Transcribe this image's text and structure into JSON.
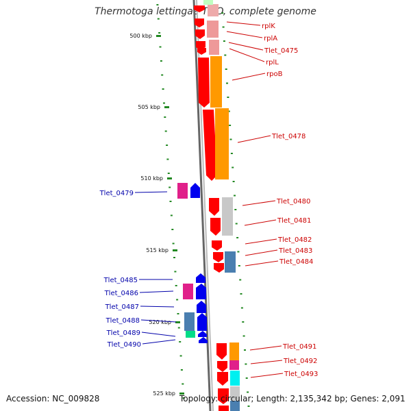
{
  "title": "Thermotoga lettingae TMO, complete genome",
  "footer": {
    "accession": "Accession: NC_009828",
    "topology": "Topology: circular; Length: 2,135,342 bp; Genes: 2,091"
  },
  "colors": {
    "red": "#ff0000",
    "pink": "#ee9999",
    "orange": "#ff9900",
    "grey": "#c8c8c8",
    "steel": "#4a7fb0",
    "magenta": "#e0208a",
    "blue": "#0000ee",
    "green": "#00dd88",
    "cyan": "#00f0f0",
    "tick_green": "#228822",
    "label_red": "#cc0000",
    "label_blue": "#0000aa"
  },
  "ruler": [
    {
      "label": "500 kbp"
    },
    {
      "label": "505 kbp"
    },
    {
      "label": "510 kbp"
    },
    {
      "label": "515 kbp"
    },
    {
      "label": "520 kbp"
    },
    {
      "label": "525 kbp"
    }
  ],
  "gene_labels": {
    "right": [
      "rplK",
      "rplA",
      "Tlet_0475",
      "rplL",
      "rpoB",
      "Tlet_0478",
      "Tlet_0480",
      "Tlet_0481",
      "Tlet_0482",
      "Tlet_0483",
      "Tlet_0484",
      "Tlet_0491",
      "Tlet_0492",
      "Tlet_0493"
    ],
    "left": [
      "Tlet_0479",
      "Tlet_0485",
      "Tlet_0486",
      "Tlet_0487",
      "Tlet_0488",
      "Tlet_0489",
      "Tlet_0490"
    ]
  }
}
